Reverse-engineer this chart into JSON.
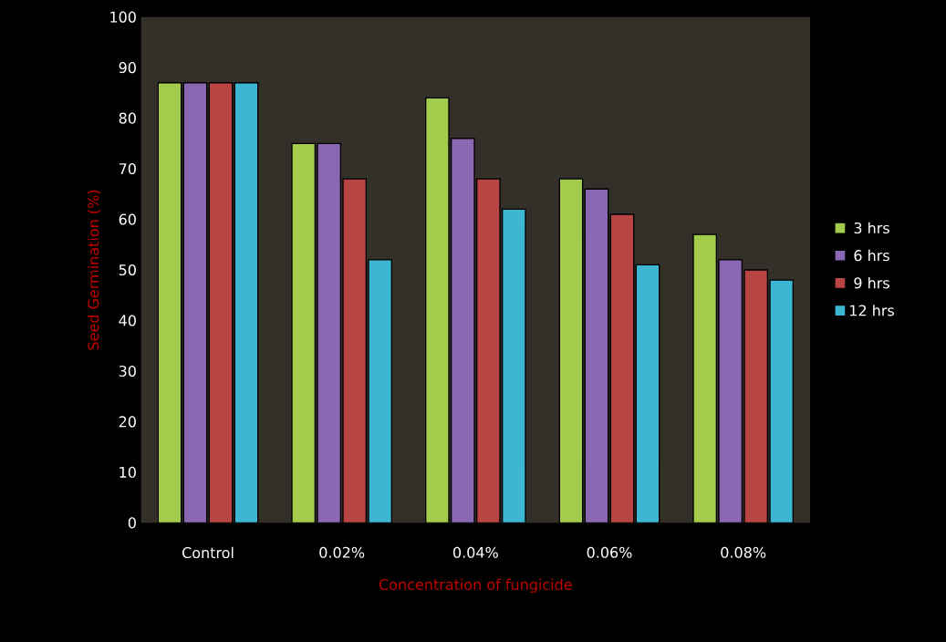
{
  "chart_data": {
    "type": "bar",
    "xlabel": "Concentration of fungicide",
    "ylabel": "Seed Germination  (%)",
    "categories": [
      "Control",
      "0.02%",
      "0.04%",
      "0.06%",
      "0.08%"
    ],
    "series": [
      {
        "name": "3 hrs",
        "color": "#a4cc4c",
        "values": [
          87,
          75,
          84,
          68,
          57
        ]
      },
      {
        "name": "6 hrs",
        "color": "#8a68b4",
        "values": [
          87,
          75,
          76,
          66,
          52
        ]
      },
      {
        "name": "9 hrs",
        "color": "#b84543",
        "values": [
          87,
          68,
          68,
          61,
          50
        ]
      },
      {
        "name": "12 hrs",
        "color": "#3cb6d2",
        "values": [
          87,
          52,
          62,
          51,
          48
        ]
      }
    ],
    "ylim": [
      0,
      100
    ],
    "yticks": [
      0,
      10,
      20,
      30,
      40,
      50,
      60,
      70,
      80,
      90,
      100
    ],
    "legend": "right"
  }
}
